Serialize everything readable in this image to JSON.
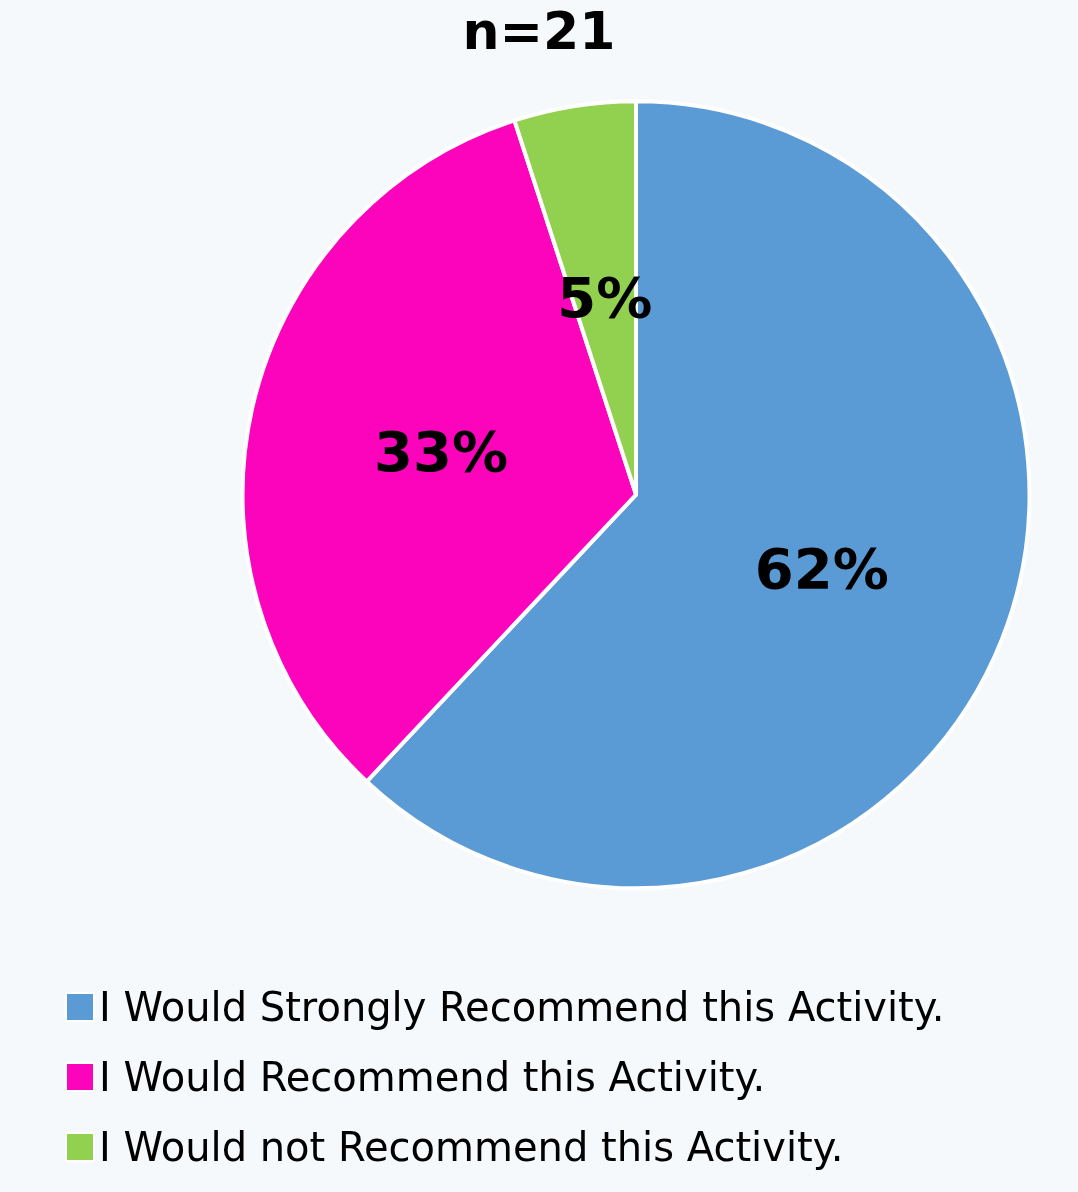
{
  "chart_data": {
    "type": "pie",
    "title": "n=21",
    "categories": [
      "I Would Strongly Recommend this Activity.",
      "I Would Recommend this Activity.",
      "I Would not Recommend this Activity."
    ],
    "values": [
      62,
      33,
      5
    ],
    "colors": [
      "#5b9bd5",
      "#fc03bc",
      "#92d050"
    ],
    "value_labels": [
      "62%",
      "33%",
      "5%"
    ],
    "legend": "bottom"
  }
}
